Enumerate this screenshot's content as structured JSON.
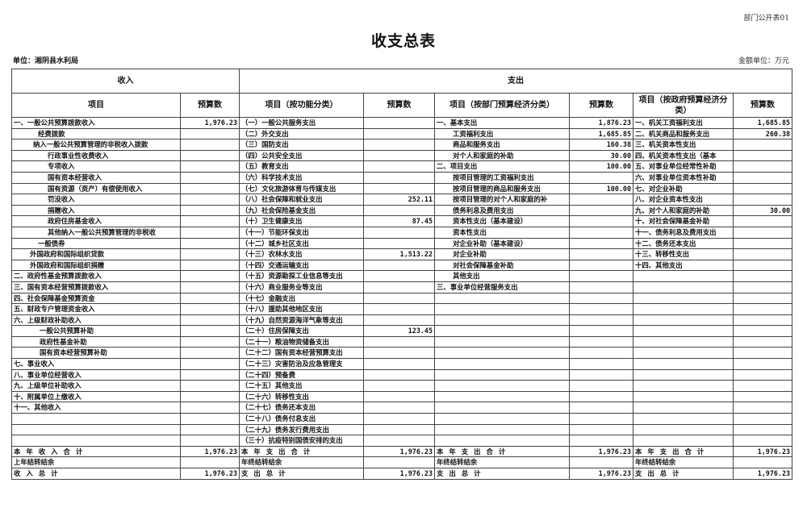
{
  "form_number": "部门公开表01",
  "title": "收支总表",
  "unit": "单位：湘阴县水利局",
  "money_unit": "金额单位：万元",
  "header": {
    "income": "收入",
    "expense": "支出",
    "columns": [
      "项目",
      "预算数",
      "项目（按功能分类）",
      "预算数",
      "项目（按部门预算经济分类）",
      "预算数",
      "项目（按政府预算经济分类）",
      "预算数"
    ]
  },
  "rows": [
    [
      "一、一般公共预算拨款收入",
      "1,976.23",
      "（一）一般公共服务支出",
      "",
      "一、基本支出",
      "1,876.23",
      "一、机关工资福利支出",
      "1,685.85"
    ],
    [
      "经费拨款",
      "",
      "（二）外交支出",
      "",
      "工资福利支出",
      "1,685.85",
      "二、机关商品和服务支出",
      "260.38"
    ],
    [
      "纳入一般公共预算管理的非税收入拨款",
      "",
      "（三）国防支出",
      "",
      "商品和服务支出",
      "160.38",
      "三、机关资本性支出",
      ""
    ],
    [
      "行政事业性收费收入",
      "",
      "（四）公共安全支出",
      "",
      "对个人和家庭的补助",
      "30.00",
      "四、机关资本性支出（基本",
      ""
    ],
    [
      "专项收入",
      "",
      "（五）教育支出",
      "",
      "二、项目支出",
      "100.00",
      "五、对事业单位经常性补助",
      ""
    ],
    [
      "国有资本经营收入",
      "",
      "（六）科学技术支出",
      "",
      "按项目管理的工资福利支出",
      "",
      "六、对事业单位资本性补助",
      ""
    ],
    [
      "国有资源（资产）有偿使用收入",
      "",
      "（七）文化旅游体育与传媒支出",
      "",
      "按项目管理的商品和服务支出",
      "100.00",
      "七、对企业补助",
      ""
    ],
    [
      "罚没收入",
      "",
      "（八）社会保障和就业支出",
      "252.11",
      "按项目管理的对个人和家庭的补",
      "",
      "八、对企业资本性支出",
      ""
    ],
    [
      "捐赠收入",
      "",
      "（九）社会保险基金支出",
      "",
      "债务利息及费用支出",
      "",
      "九、对个人和家庭的补助",
      "30.00"
    ],
    [
      "政府住房基金收入",
      "",
      "（十）卫生健康支出",
      "87.45",
      "资本性支出（基本建设）",
      "",
      "十、对社会保障基金补助",
      ""
    ],
    [
      "其他纳入一般公共预算管理的非税收",
      "",
      "（十一）节能环保支出",
      "",
      "资本性支出",
      "",
      "十一、债务利息及费用支出",
      ""
    ],
    [
      "一般债券",
      "",
      "（十二）城乡社区支出",
      "",
      "对企业补助（基本建设）",
      "",
      "十二、债务还本支出",
      ""
    ],
    [
      "外国政府和国际组织贷款",
      "",
      "（十三）农林水支出",
      "1,513.22",
      "对企业补助",
      "",
      "十三、转移性支出",
      ""
    ],
    [
      "外国政府和国际组织捐赠",
      "",
      "（十四）交通运输支出",
      "",
      "对社会保障基金补助",
      "",
      "十四、其他支出",
      ""
    ],
    [
      "二、政府性基金预算拨款收入",
      "",
      "（十五）资源勘探工业信息等支出",
      "",
      "其他支出",
      "",
      "",
      ""
    ],
    [
      "三、国有资本经营预算拨款收入",
      "",
      "（十六）商业服务业等支出",
      "",
      "三、事业单位经营服务支出",
      "",
      "",
      ""
    ],
    [
      "四、社会保障基金预算资金",
      "",
      "（十七）金融支出",
      "",
      "",
      "",
      "",
      ""
    ],
    [
      "五、财政专户管理资金收入",
      "",
      "（十八）援助其他地区支出",
      "",
      "",
      "",
      "",
      ""
    ],
    [
      "六、上级财政补助收入",
      "",
      "（十九）自然资源海洋气象等支出",
      "",
      "",
      "",
      "",
      ""
    ],
    [
      "一般公共预算补助",
      "",
      "（二十）住房保障支出",
      "123.45",
      "",
      "",
      "",
      ""
    ],
    [
      "政府性基金补助",
      "",
      "（二十一）粮油物资储备支出",
      "",
      "",
      "",
      "",
      ""
    ],
    [
      "国有资本经营预算补助",
      "",
      "（二十二）国有资本经营预算支出",
      "",
      "",
      "",
      "",
      ""
    ],
    [
      "七、事业收入",
      "",
      "（二十三）灾害防治及应急管理支",
      "",
      "",
      "",
      "",
      ""
    ],
    [
      "八、事业单位经营收入",
      "",
      "（二十四）预备费",
      "",
      "",
      "",
      "",
      ""
    ],
    [
      "九、上级单位补助收入",
      "",
      "（二十五）其他支出",
      "",
      "",
      "",
      "",
      ""
    ],
    [
      "十、附属单位上缴收入",
      "",
      "（二十六）转移性支出",
      "",
      "",
      "",
      "",
      ""
    ],
    [
      "十一、其他收入",
      "",
      "（二十七）债务还本支出",
      "",
      "",
      "",
      "",
      ""
    ],
    [
      "",
      "",
      "（二十八）债务付息支出",
      "",
      "",
      "",
      "",
      ""
    ],
    [
      "",
      "",
      "（二十九）债务发行费用支出",
      "",
      "",
      "",
      "",
      ""
    ],
    [
      "",
      "",
      "（三十）抗疫特别国债安排的支出",
      "",
      "",
      "",
      "",
      ""
    ]
  ],
  "totals": [
    [
      "本年收入合计",
      "1,976.23",
      "本年支出合计",
      "1,976.23",
      "本年支出合计",
      "1,976.23",
      "本年支出合计",
      "1,976.23"
    ],
    [
      "上年结转结余",
      "",
      "年终结转结余",
      "",
      "年终结转结余",
      "",
      "年终结转结余",
      ""
    ],
    [
      "收入总计",
      "1,976.23",
      "支出总计",
      "1,976.23",
      "支出总计",
      "1,976.23",
      "支出总计",
      "1,976.23"
    ]
  ]
}
